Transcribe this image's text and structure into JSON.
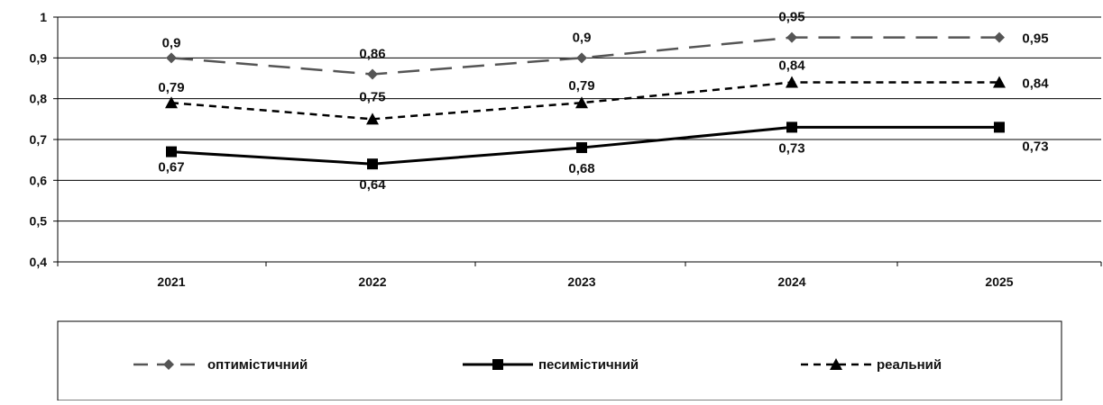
{
  "chart_data": {
    "type": "line",
    "categories": [
      "2021",
      "2022",
      "2023",
      "2024",
      "2025"
    ],
    "ylim": [
      0.4,
      1.0
    ],
    "y_ticks": [
      "0,4",
      "0,5",
      "0,6",
      "0,7",
      "0,8",
      "0,9",
      "1"
    ],
    "grid": true,
    "legend_position": "bottom",
    "series": [
      {
        "name": "оптимістичний",
        "values": [
          0.9,
          0.86,
          0.9,
          0.95,
          0.95
        ],
        "labels": [
          "0,9",
          "0,86",
          "0,9",
          "0,95",
          "0,95"
        ],
        "color": "#555555",
        "marker": "diamond",
        "line_style": "long-dash"
      },
      {
        "name": "песимістичний",
        "values": [
          0.67,
          0.64,
          0.68,
          0.73,
          0.73
        ],
        "labels": [
          "0,67",
          "0,64",
          "0,68",
          "0,73",
          "0,73"
        ],
        "color": "#000000",
        "marker": "square",
        "line_style": "solid"
      },
      {
        "name": "реальний",
        "values": [
          0.79,
          0.75,
          0.79,
          0.84,
          0.84
        ],
        "labels": [
          "0,79",
          "0,75",
          "0,79",
          "0,84",
          "0,84"
        ],
        "color": "#000000",
        "marker": "triangle",
        "line_style": "short-dash"
      }
    ]
  }
}
